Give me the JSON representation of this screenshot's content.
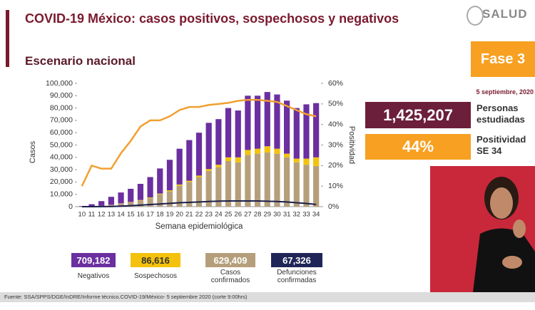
{
  "header": {
    "title": "COVID-19 México: casos positivos, sospechosos y negativos",
    "logo": "SALUD",
    "phase": "Fase 3",
    "date": "5 septiembre, 2020"
  },
  "stats": [
    {
      "value": "1,425,207",
      "label": "Personas estudiadas"
    },
    {
      "value": "44%",
      "label": "Positividad SE 34"
    }
  ],
  "footer": "Fuente: SSA/SPPS/DGE/InDRE/Informe técnico.COVID-19/México- 5 septiembre 2020 (corte 9:00hrs)",
  "chart_data": {
    "type": "bar",
    "title": "Escenario nacional",
    "xlabel": "Semana epidemiológica",
    "ylabel": "Casos",
    "y2label": "Positividad",
    "categories": [
      "10",
      "11",
      "12",
      "13",
      "14",
      "15",
      "16",
      "17",
      "18",
      "19",
      "20",
      "21",
      "22",
      "23",
      "24",
      "25",
      "26",
      "27",
      "28",
      "29",
      "30",
      "31",
      "32",
      "33",
      "34"
    ],
    "series": [
      {
        "name": "Casos confirmados",
        "total": "629,409",
        "kind": "bar",
        "color": "#b59f7b",
        "values": [
          100,
          300,
          700,
          1500,
          2500,
          3500,
          5000,
          7000,
          10000,
          12500,
          17000,
          20000,
          24000,
          29000,
          32000,
          37000,
          36000,
          42000,
          43000,
          44000,
          43000,
          40000,
          36000,
          34000,
          33000
        ]
      },
      {
        "name": "Sospechosos",
        "total": "86,616",
        "kind": "bar",
        "color": "#f4c20d",
        "values": [
          0,
          0,
          0,
          100,
          200,
          300,
          400,
          500,
          600,
          800,
          1000,
          1000,
          1200,
          1500,
          2000,
          3000,
          4000,
          4000,
          4000,
          5000,
          4000,
          3000,
          3000,
          5000,
          7000
        ]
      },
      {
        "name": "Negativos",
        "total": "709,182",
        "kind": "bar",
        "color": "#6b2fa0",
        "values": [
          400,
          1700,
          3800,
          6400,
          8800,
          10700,
          13100,
          16500,
          20400,
          24700,
          29000,
          33000,
          34800,
          37500,
          37000,
          40000,
          38000,
          44000,
          43000,
          44000,
          44000,
          43000,
          41000,
          44000,
          44000
        ]
      },
      {
        "name": "Defunciones confirmadas",
        "total": "67,326",
        "kind": "line",
        "color": "#1b1f4b",
        "values": [
          0,
          0,
          50,
          150,
          400,
          800,
          1200,
          1700,
          2200,
          2700,
          3200,
          3500,
          3800,
          4200,
          4500,
          4600,
          4600,
          4600,
          4600,
          4400,
          4200,
          3800,
          3200,
          2600,
          1800
        ]
      },
      {
        "kind": "line",
        "axis": "y2",
        "color": "#f0a030",
        "values": [
          10,
          20,
          18.5,
          18.5,
          26,
          32,
          39,
          42,
          42,
          44,
          47,
          48.5,
          48.5,
          49.5,
          50,
          50.5,
          51.5,
          52,
          52,
          51.5,
          51,
          49,
          47,
          45,
          44
        ]
      }
    ],
    "ylim": [
      0,
      100000
    ],
    "yticks": [
      0,
      {
        "value": 10000,
        "label": "10,000"
      },
      {
        "value": 20000,
        "label": "20,000"
      },
      {
        "value": 30000,
        "label": "30,000"
      },
      {
        "value": 40000,
        "label": "40,000"
      },
      {
        "value": 50000,
        "label": "50,000"
      },
      {
        "value": 60000,
        "label": "60,000"
      },
      {
        "value": 70000,
        "label": "70,000"
      },
      {
        "value": 80000,
        "label": "80,000"
      },
      {
        "value": 90000,
        "label": "90,000"
      },
      {
        "value": 100000,
        "label": "100,000"
      }
    ],
    "y2lim": [
      0,
      60
    ],
    "y2ticks": [
      {
        "value": 0,
        "label": "0%"
      },
      {
        "value": 10,
        "label": "10%"
      },
      {
        "value": 20,
        "label": "20%"
      },
      {
        "value": 30,
        "label": "30%"
      },
      {
        "value": 40,
        "label": "40%"
      },
      {
        "value": 50,
        "label": "50%"
      },
      {
        "value": 60,
        "label": "60%"
      }
    ]
  }
}
